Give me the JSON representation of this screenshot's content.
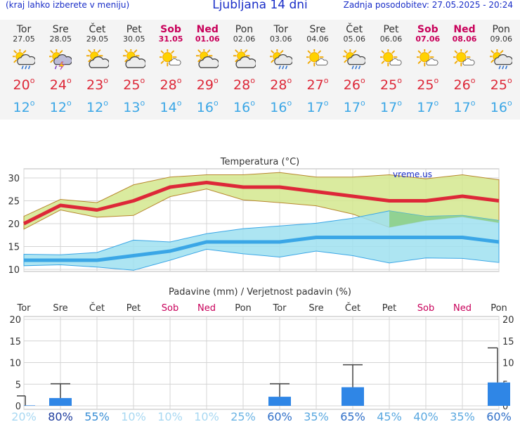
{
  "header": {
    "menu_hint": "(kraj lahko izberete v meniju)",
    "title": "Ljubljana 14 dni",
    "updated": "Zadnja posodobitev: 27.05.2025 - 20:24"
  },
  "colors": {
    "max_temp": "#dd2838",
    "min_temp": "#3aa6e6",
    "weekend": "#c8005a",
    "max_band": "#d4e88e",
    "min_band": "#9fe0f0",
    "overlap_band": "#8ed088",
    "precip_bar": "#2f86e6"
  },
  "days": [
    {
      "name": "Tor",
      "date": "27.05",
      "weekend": false,
      "icon": "sun-cloud-rain-icon",
      "tmax": "20",
      "tmin": "12"
    },
    {
      "name": "Sre",
      "date": "28.05",
      "weekend": false,
      "icon": "sun-cloud-thunder-icon",
      "tmax": "24",
      "tmin": "12"
    },
    {
      "name": "Čet",
      "date": "29.05",
      "weekend": false,
      "icon": "partly-cloudy-icon",
      "tmax": "23",
      "tmin": "12"
    },
    {
      "name": "Pet",
      "date": "30.05",
      "weekend": false,
      "icon": "partly-cloudy-icon",
      "tmax": "25",
      "tmin": "13"
    },
    {
      "name": "Sob",
      "date": "31.05",
      "weekend": true,
      "icon": "sun-small-cloud-icon",
      "tmax": "28",
      "tmin": "14"
    },
    {
      "name": "Ned",
      "date": "01.06",
      "weekend": true,
      "icon": "partly-cloudy-icon",
      "tmax": "29",
      "tmin": "16"
    },
    {
      "name": "Pon",
      "date": "02.06",
      "weekend": false,
      "icon": "partly-cloudy-icon",
      "tmax": "28",
      "tmin": "16"
    },
    {
      "name": "Tor",
      "date": "03.06",
      "weekend": false,
      "icon": "sun-cloud-rain-icon",
      "tmax": "28",
      "tmin": "16"
    },
    {
      "name": "Sre",
      "date": "04.06",
      "weekend": false,
      "icon": "sun-small-cloud-icon",
      "tmax": "27",
      "tmin": "17"
    },
    {
      "name": "Čet",
      "date": "05.06",
      "weekend": false,
      "icon": "sun-cloud-rain-icon",
      "tmax": "26",
      "tmin": "17"
    },
    {
      "name": "Pet",
      "date": "06.06",
      "weekend": false,
      "icon": "sun-small-cloud-icon",
      "tmax": "25",
      "tmin": "17"
    },
    {
      "name": "Sob",
      "date": "07.06",
      "weekend": true,
      "icon": "sun-small-cloud-icon",
      "tmax": "25",
      "tmin": "17"
    },
    {
      "name": "Ned",
      "date": "08.06",
      "weekend": true,
      "icon": "sun-small-cloud-icon",
      "tmax": "26",
      "tmin": "17"
    },
    {
      "name": "Pon",
      "date": "09.06",
      "weekend": false,
      "icon": "sun-cloud-rain-icon",
      "tmax": "25",
      "tmin": "16"
    }
  ],
  "chart_data": [
    {
      "type": "line",
      "title": "Temperatura (°C)",
      "watermark": "vreme.us",
      "ylim": [
        10,
        32
      ],
      "yticks": [
        10,
        15,
        20,
        25,
        30
      ],
      "grid": true,
      "categories": [
        "Tor",
        "Sre",
        "Čet",
        "Pet",
        "Sob",
        "Ned",
        "Pon",
        "Tor",
        "Sre",
        "Čet",
        "Pet",
        "Sob",
        "Ned",
        "Pon"
      ],
      "series": [
        {
          "values": [
            20,
            24,
            23,
            25,
            28,
            29,
            28,
            28,
            27,
            26,
            25,
            25,
            26,
            25
          ]
        },
        {
          "values": [
            12,
            12,
            12,
            13,
            14,
            16,
            16,
            16,
            17,
            17,
            17,
            17,
            17,
            16
          ]
        }
      ],
      "max_range": {
        "high": [
          21.6,
          25.3,
          24.6,
          28.5,
          30.2,
          30.7,
          30.7,
          31.2,
          30.2,
          30.2,
          30.7,
          29.8,
          30.7,
          29.6
        ],
        "low": [
          18.8,
          23.0,
          21.4,
          21.8,
          25.9,
          27.6,
          25.2,
          24.6,
          23.9,
          22.1,
          19.2,
          20.7,
          21.5,
          20.2
        ]
      },
      "min_range": {
        "high": [
          13.3,
          13.2,
          13.7,
          16.4,
          16.0,
          17.8,
          18.9,
          19.5,
          20.1,
          21.2,
          22.8,
          21.6,
          21.8,
          20.7
        ],
        "low": [
          10.8,
          11.0,
          10.5,
          9.8,
          12.0,
          14.4,
          13.4,
          12.7,
          14.0,
          13.0,
          11.4,
          12.5,
          12.4,
          11.5
        ]
      }
    },
    {
      "type": "bar",
      "title": "Padavine (mm) / Verjetnost padavin (%)",
      "ylim": [
        0,
        20
      ],
      "yticks": [
        0,
        5,
        10,
        15,
        20
      ],
      "grid": true,
      "categories": [
        "Tor",
        "Sre",
        "Čet",
        "Pet",
        "Sob",
        "Ned",
        "Pon",
        "Tor",
        "Sre",
        "Čet",
        "Pet",
        "Sob",
        "Ned",
        "Pon"
      ],
      "weekend": [
        false,
        false,
        false,
        false,
        true,
        true,
        false,
        false,
        false,
        false,
        false,
        true,
        true,
        false
      ],
      "values": [
        0.1,
        1.8,
        0,
        0,
        0,
        0,
        0,
        2.1,
        0,
        4.3,
        0,
        0,
        0,
        5.4
      ],
      "error_high": [
        2.3,
        5.1,
        0,
        0,
        0,
        0,
        0,
        5.1,
        0,
        9.5,
        0,
        0,
        0,
        13.4
      ],
      "probability": [
        "20%",
        "80%",
        "55%",
        "10%",
        "10%",
        "10%",
        "25%",
        "60%",
        "35%",
        "65%",
        "45%",
        "40%",
        "35%",
        "60%"
      ],
      "probability_colors": [
        "#a8d8f2",
        "#1f3d9e",
        "#3a8fd6",
        "#a8d8f2",
        "#a8d8f2",
        "#a8d8f2",
        "#6cb4e4",
        "#2f6fc8",
        "#5aa8e0",
        "#2f6fc8",
        "#5aa8e0",
        "#5aa8e0",
        "#5aa8e0",
        "#2f6fc8"
      ]
    }
  ]
}
